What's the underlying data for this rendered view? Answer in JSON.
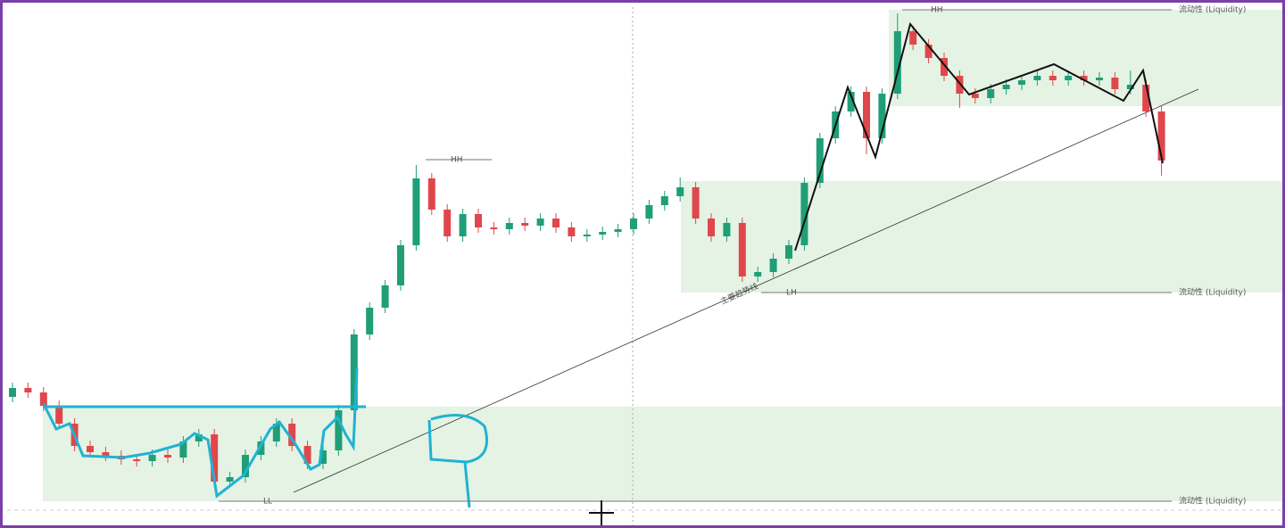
{
  "chart_data": {
    "type": "candlestick",
    "up_color": "#1f9e78",
    "down_color": "#e0474c",
    "ylim": [
      0,
      592
    ],
    "ohlc": [
      [
        150,
        166,
        144,
        160
      ],
      [
        160,
        166,
        149,
        155
      ],
      [
        155,
        161,
        134,
        140
      ],
      [
        140,
        146,
        114,
        120
      ],
      [
        120,
        126,
        89,
        95
      ],
      [
        95,
        101,
        82,
        88
      ],
      [
        88,
        94,
        78,
        84
      ],
      [
        84,
        90,
        74,
        80
      ],
      [
        80,
        86,
        72,
        78
      ],
      [
        78,
        91,
        72,
        85
      ],
      [
        85,
        91,
        76,
        82
      ],
      [
        82,
        106,
        76,
        100
      ],
      [
        100,
        114,
        94,
        108
      ],
      [
        108,
        114,
        49,
        55
      ],
      [
        55,
        66,
        49,
        60
      ],
      [
        60,
        91,
        54,
        85
      ],
      [
        85,
        106,
        79,
        100
      ],
      [
        100,
        126,
        94,
        120
      ],
      [
        120,
        126,
        89,
        95
      ],
      [
        95,
        101,
        69,
        75
      ],
      [
        75,
        96,
        69,
        90
      ],
      [
        90,
        141,
        84,
        135
      ],
      [
        135,
        226,
        129,
        220
      ],
      [
        220,
        256,
        214,
        250
      ],
      [
        250,
        281,
        244,
        275
      ],
      [
        275,
        326,
        269,
        320
      ],
      [
        320,
        410,
        314,
        395
      ],
      [
        395,
        401,
        354,
        360
      ],
      [
        360,
        366,
        324,
        330
      ],
      [
        330,
        361,
        324,
        355
      ],
      [
        355,
        361,
        334,
        340
      ],
      [
        340,
        346,
        332,
        338
      ],
      [
        338,
        351,
        332,
        345
      ],
      [
        345,
        351,
        336,
        342
      ],
      [
        342,
        356,
        336,
        350
      ],
      [
        350,
        356,
        334,
        340
      ],
      [
        340,
        346,
        324,
        330
      ],
      [
        330,
        338,
        324,
        332
      ],
      [
        332,
        341,
        326,
        335
      ],
      [
        335,
        344,
        329,
        338
      ],
      [
        338,
        356,
        332,
        350
      ],
      [
        350,
        371,
        344,
        365
      ],
      [
        365,
        381,
        359,
        375
      ],
      [
        375,
        396,
        369,
        385
      ],
      [
        385,
        391,
        344,
        350
      ],
      [
        350,
        356,
        324,
        330
      ],
      [
        330,
        351,
        324,
        345
      ],
      [
        345,
        351,
        279,
        285
      ],
      [
        285,
        296,
        279,
        290
      ],
      [
        290,
        311,
        284,
        305
      ],
      [
        305,
        326,
        299,
        320
      ],
      [
        320,
        396,
        314,
        390
      ],
      [
        390,
        446,
        384,
        440
      ],
      [
        440,
        476,
        434,
        470
      ],
      [
        470,
        498,
        464,
        492
      ],
      [
        492,
        498,
        422,
        440
      ],
      [
        440,
        496,
        434,
        490
      ],
      [
        490,
        580,
        484,
        560
      ],
      [
        560,
        566,
        539,
        545
      ],
      [
        545,
        551,
        524,
        530
      ],
      [
        530,
        536,
        504,
        510
      ],
      [
        510,
        516,
        474,
        490
      ],
      [
        490,
        496,
        479,
        485
      ],
      [
        485,
        501,
        479,
        495
      ],
      [
        495,
        506,
        489,
        500
      ],
      [
        500,
        511,
        494,
        505
      ],
      [
        505,
        516,
        499,
        510
      ],
      [
        510,
        516,
        499,
        505
      ],
      [
        505,
        516,
        499,
        510
      ],
      [
        510,
        516,
        499,
        505
      ],
      [
        505,
        514,
        499,
        508
      ],
      [
        508,
        514,
        489,
        495
      ],
      [
        495,
        516,
        489,
        500
      ],
      [
        500,
        506,
        464,
        470
      ],
      [
        470,
        476,
        398,
        415
      ]
    ],
    "annotations": [
      "HH",
      "HH",
      "LH",
      "LL",
      "流动性 (Liquidity)",
      "流动性 (Liquidity)",
      "流动性 (Liquidity)",
      "主要趋势线"
    ]
  }
}
